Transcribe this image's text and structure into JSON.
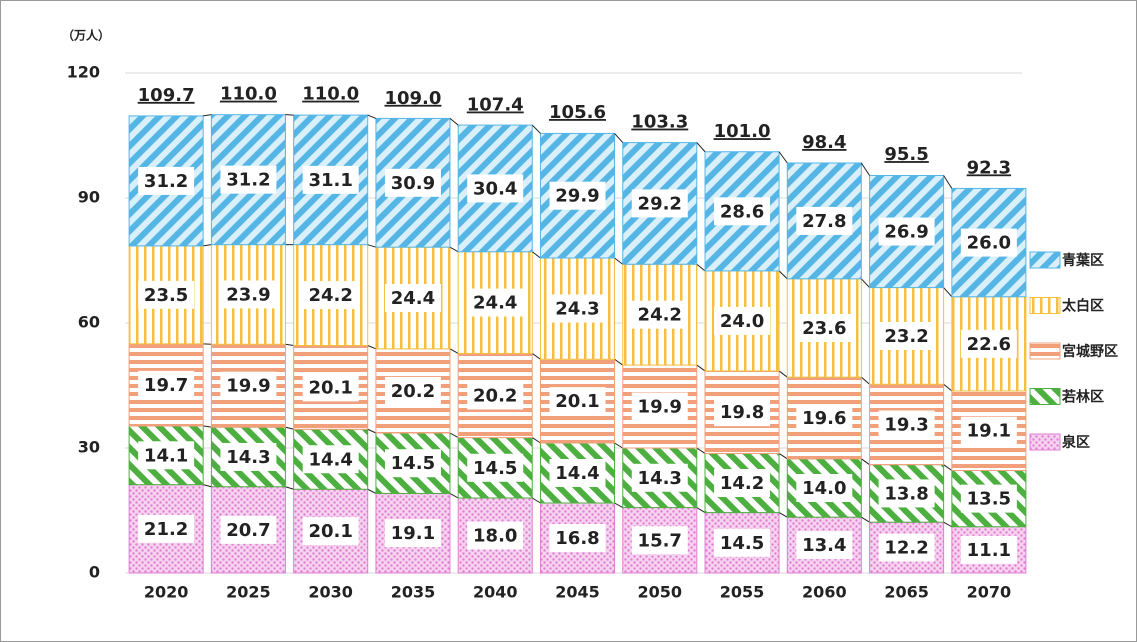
{
  "chart_data": {
    "type": "stacked_bar",
    "y_unit_label": "（万人）",
    "categories": [
      "2020",
      "2025",
      "2030",
      "2035",
      "2040",
      "2045",
      "2050",
      "2055",
      "2060",
      "2065",
      "2070"
    ],
    "series": [
      {
        "name": "泉区",
        "color": "#e27fd3",
        "pattern": "dots",
        "values": [
          21.2,
          20.7,
          20.1,
          19.1,
          18.0,
          16.8,
          15.7,
          14.5,
          13.4,
          12.2,
          11.1
        ],
        "value_labels": [
          "21.2",
          "20.7",
          "20.1",
          "19.1",
          "18.0",
          "16.8",
          "15.7",
          "14.5",
          "13.4",
          "12.2",
          "11.1"
        ]
      },
      {
        "name": "若林区",
        "color": "#4caf3f",
        "pattern": "diag-left",
        "values": [
          14.1,
          14.3,
          14.4,
          14.5,
          14.5,
          14.4,
          14.3,
          14.2,
          14.0,
          13.8,
          13.5
        ],
        "value_labels": [
          "14.1",
          "14.3",
          "14.4",
          "14.5",
          "14.5",
          "14.4",
          "14.3",
          "14.2",
          "14.0",
          "13.8",
          "13.5"
        ]
      },
      {
        "name": "宮城野区",
        "color": "#f2a07c",
        "pattern": "horizontal",
        "values": [
          19.7,
          19.9,
          20.1,
          20.2,
          20.2,
          20.1,
          19.9,
          19.8,
          19.6,
          19.3,
          19.1
        ],
        "value_labels": [
          "19.7",
          "19.9",
          "20.1",
          "20.2",
          "20.2",
          "20.1",
          "19.9",
          "19.8",
          "19.6",
          "19.3",
          "19.1"
        ]
      },
      {
        "name": "太白区",
        "color": "#f5c040",
        "pattern": "vertical",
        "values": [
          23.5,
          23.9,
          24.2,
          24.4,
          24.4,
          24.3,
          24.2,
          24.0,
          23.6,
          23.2,
          22.6
        ],
        "value_labels": [
          "23.5",
          "23.9",
          "24.2",
          "24.4",
          "24.4",
          "24.3",
          "24.2",
          "24.0",
          "23.6",
          "23.2",
          "22.6"
        ]
      },
      {
        "name": "青葉区",
        "color": "#55b6e6",
        "pattern": "diag-right",
        "values": [
          31.2,
          31.2,
          31.1,
          30.9,
          30.4,
          29.9,
          29.2,
          28.6,
          27.8,
          26.9,
          26.0
        ],
        "value_labels": [
          "31.2",
          "31.2",
          "31.1",
          "30.9",
          "30.4",
          "29.9",
          "29.2",
          "28.6",
          "27.8",
          "26.9",
          "26.0"
        ]
      }
    ],
    "totals": [
      109.7,
      110.0,
      110.0,
      109.0,
      107.4,
      105.6,
      103.3,
      101.0,
      98.4,
      95.5,
      92.3
    ],
    "total_labels": [
      "109.7",
      "110.0",
      "110.0",
      "109.0",
      "107.4",
      "105.6",
      "103.3",
      "101.0",
      "98.4",
      "95.5",
      "92.3"
    ],
    "ylim": [
      0,
      120
    ],
    "yticks": [
      0,
      30,
      60,
      90,
      120
    ],
    "grid": true,
    "legend": "right"
  }
}
